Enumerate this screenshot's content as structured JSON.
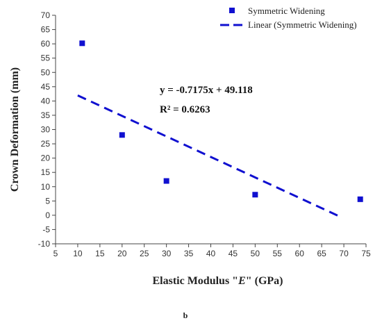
{
  "chart_data": {
    "type": "scatter",
    "xlabel_parts": [
      "Elastic Modulus \"",
      "E",
      "\" (GPa)"
    ],
    "ylabel": "Crown Deformation (mm)",
    "xlim": [
      5,
      75
    ],
    "ylim": [
      -10,
      70
    ],
    "x_ticks": [
      5,
      10,
      15,
      20,
      25,
      30,
      35,
      40,
      45,
      50,
      55,
      60,
      65,
      70,
      75
    ],
    "y_ticks": [
      -10,
      -5,
      0,
      5,
      10,
      15,
      20,
      25,
      30,
      35,
      40,
      45,
      50,
      55,
      60,
      65,
      70
    ],
    "grid": false,
    "legend_position": "top-right",
    "series": [
      {
        "name": "Symmetric Widening",
        "color": "#1010d0",
        "marker": "square",
        "x": [
          11,
          20,
          30,
          50,
          73.7
        ],
        "y": [
          60.2,
          28.1,
          12.0,
          7.2,
          5.6
        ]
      }
    ],
    "trendline": {
      "name": "Linear (Symmetric Widening)",
      "color": "#1010d0",
      "style": "dashed",
      "slope": -0.7175,
      "intercept": 49.118,
      "x_range": [
        10,
        69.5
      ],
      "equation": "y = -0.7175x + 49.118",
      "r_squared": "R² = 0.6263"
    },
    "caption": "b"
  }
}
